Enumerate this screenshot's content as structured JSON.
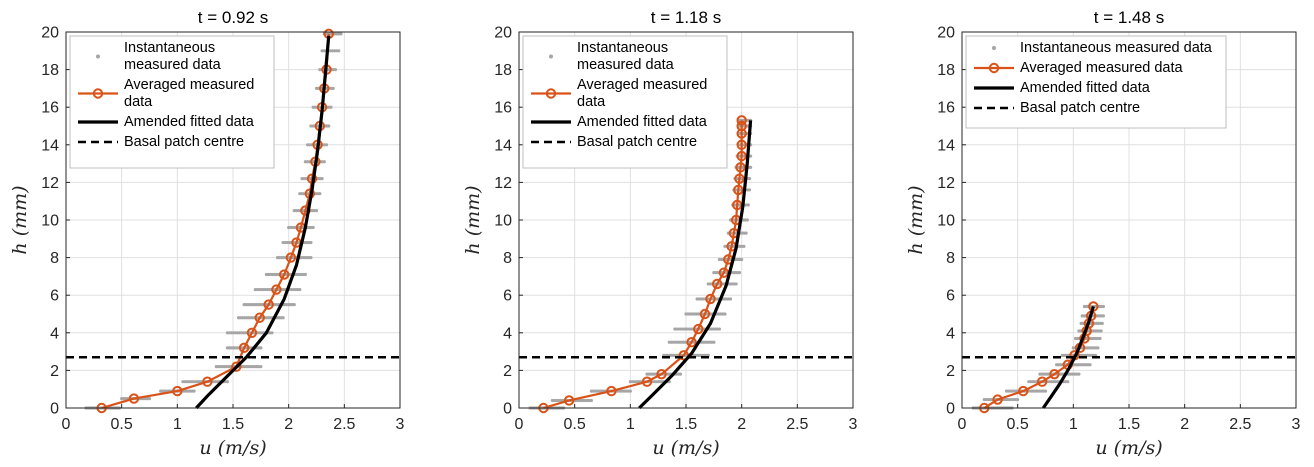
{
  "chart_data": [
    {
      "type": "line",
      "title": "t = 0.92 s",
      "xlabel": "u (m/s)",
      "ylabel": "h (mm)",
      "xlim": [
        0,
        3
      ],
      "ylim": [
        0,
        20
      ],
      "xticks": [
        0,
        0.5,
        1,
        1.5,
        2,
        2.5,
        3
      ],
      "yticks": [
        0,
        2,
        4,
        6,
        8,
        10,
        12,
        14,
        16,
        18,
        20
      ],
      "grid": true,
      "legend": {
        "placement": "top-left",
        "entries": [
          {
            "lines": [
              "Instantaneous",
              "measured data"
            ],
            "key": "instantaneous"
          },
          {
            "lines": [
              "Averaged measured",
              "data"
            ],
            "key": "averaged"
          },
          {
            "lines": [
              "Amended fitted data"
            ],
            "key": "fitted"
          },
          {
            "lines": [
              "Basal patch centre"
            ],
            "key": "basal"
          }
        ]
      },
      "series": [
        {
          "name": "Averaged measured data",
          "key": "averaged",
          "x": [
            0.32,
            0.61,
            1.0,
            1.27,
            1.53,
            1.6,
            1.67,
            1.74,
            1.82,
            1.89,
            1.96,
            2.02,
            2.07,
            2.11,
            2.15,
            2.19,
            2.21,
            2.24,
            2.26,
            2.28,
            2.3,
            2.32,
            2.34,
            2.36
          ],
          "y": [
            0.0,
            0.5,
            0.9,
            1.4,
            2.2,
            3.2,
            4.0,
            4.8,
            5.5,
            6.3,
            7.1,
            8.0,
            8.8,
            9.6,
            10.5,
            11.4,
            12.2,
            13.1,
            14.0,
            15.0,
            16.0,
            17.0,
            18.0,
            19.9
          ]
        },
        {
          "name": "Amended fitted data",
          "key": "fitted",
          "x": [
            1.17,
            1.28,
            1.45,
            1.62,
            1.8,
            1.96,
            2.07,
            2.15,
            2.21,
            2.26,
            2.3,
            2.33,
            2.36
          ],
          "y": [
            0.0,
            0.7,
            1.7,
            2.7,
            4.0,
            5.8,
            7.6,
            9.6,
            11.6,
            13.7,
            15.8,
            17.8,
            19.8
          ]
        },
        {
          "name": "Basal patch centre",
          "key": "basal",
          "y": 2.7
        }
      ],
      "scatter_rows": [
        {
          "h": 0.0,
          "u": [
            0.18,
            0.48
          ]
        },
        {
          "h": 0.5,
          "u": [
            0.5,
            0.75
          ]
        },
        {
          "h": 0.9,
          "u": [
            0.85,
            1.15
          ]
        },
        {
          "h": 1.4,
          "u": [
            1.05,
            1.45
          ]
        },
        {
          "h": 2.2,
          "u": [
            1.35,
            1.75
          ]
        },
        {
          "h": 3.2,
          "u": [
            1.45,
            1.75
          ]
        },
        {
          "h": 4.0,
          "u": [
            1.45,
            1.85
          ]
        },
        {
          "h": 4.8,
          "u": [
            1.55,
            1.95
          ]
        },
        {
          "h": 5.5,
          "u": [
            1.6,
            2.05
          ]
        },
        {
          "h": 6.3,
          "u": [
            1.7,
            2.1
          ]
        },
        {
          "h": 7.1,
          "u": [
            1.8,
            2.15
          ]
        },
        {
          "h": 8.0,
          "u": [
            1.9,
            2.2
          ]
        },
        {
          "h": 8.8,
          "u": [
            1.95,
            2.2
          ]
        },
        {
          "h": 9.6,
          "u": [
            2.0,
            2.22
          ]
        },
        {
          "h": 10.5,
          "u": [
            2.05,
            2.25
          ]
        },
        {
          "h": 11.4,
          "u": [
            2.1,
            2.28
          ]
        },
        {
          "h": 12.2,
          "u": [
            2.12,
            2.3
          ]
        },
        {
          "h": 13.1,
          "u": [
            2.15,
            2.32
          ]
        },
        {
          "h": 14.0,
          "u": [
            2.17,
            2.34
          ]
        },
        {
          "h": 15.0,
          "u": [
            2.2,
            2.36
          ]
        },
        {
          "h": 16.0,
          "u": [
            2.22,
            2.38
          ]
        },
        {
          "h": 17.0,
          "u": [
            2.25,
            2.4
          ]
        },
        {
          "h": 18.0,
          "u": [
            2.28,
            2.42
          ]
        },
        {
          "h": 19.0,
          "u": [
            2.3,
            2.45
          ]
        },
        {
          "h": 19.9,
          "u": [
            2.32,
            2.47
          ]
        }
      ]
    },
    {
      "type": "line",
      "title": "t = 1.18 s",
      "xlabel": "u (m/s)",
      "ylabel": "h (mm)",
      "xlim": [
        0,
        3
      ],
      "ylim": [
        0,
        20
      ],
      "xticks": [
        0,
        0.5,
        1,
        1.5,
        2,
        2.5,
        3
      ],
      "yticks": [
        0,
        2,
        4,
        6,
        8,
        10,
        12,
        14,
        16,
        18,
        20
      ],
      "grid": true,
      "legend": {
        "placement": "top-left",
        "entries": [
          {
            "lines": [
              "Instantaneous",
              "measured data"
            ],
            "key": "instantaneous"
          },
          {
            "lines": [
              "Averaged measured",
              "data"
            ],
            "key": "averaged"
          },
          {
            "lines": [
              "Amended fitted data"
            ],
            "key": "fitted"
          },
          {
            "lines": [
              "Basal patch centre"
            ],
            "key": "basal"
          }
        ]
      },
      "series": [
        {
          "name": "Averaged measured data",
          "key": "averaged",
          "x": [
            0.22,
            0.45,
            0.83,
            1.15,
            1.28,
            1.48,
            1.55,
            1.61,
            1.67,
            1.72,
            1.78,
            1.84,
            1.88,
            1.91,
            1.93,
            1.95,
            1.96,
            1.97,
            1.98,
            1.99,
            2.0,
            2.0,
            2.0,
            2.0,
            2.0
          ],
          "y": [
            0.0,
            0.4,
            0.9,
            1.4,
            1.8,
            2.8,
            3.5,
            4.2,
            5.0,
            5.8,
            6.6,
            7.2,
            7.9,
            8.6,
            9.3,
            10.0,
            10.8,
            11.6,
            12.2,
            12.8,
            13.4,
            14.0,
            14.6,
            15.0,
            15.3
          ]
        },
        {
          "name": "Amended fitted data",
          "key": "fitted",
          "x": [
            1.08,
            1.2,
            1.37,
            1.55,
            1.72,
            1.86,
            1.95,
            2.01,
            2.05,
            2.08
          ],
          "y": [
            0.0,
            0.7,
            1.7,
            2.9,
            4.5,
            6.5,
            8.5,
            10.7,
            13.0,
            15.3
          ]
        },
        {
          "name": "Basal patch centre",
          "key": "basal",
          "y": 2.7
        }
      ],
      "scatter_rows": [
        {
          "h": 0.0,
          "u": [
            0.1,
            0.4
          ]
        },
        {
          "h": 0.4,
          "u": [
            0.3,
            0.65
          ]
        },
        {
          "h": 0.9,
          "u": [
            0.65,
            1.0
          ]
        },
        {
          "h": 1.4,
          "u": [
            1.0,
            1.35
          ]
        },
        {
          "h": 1.8,
          "u": [
            1.15,
            1.45
          ]
        },
        {
          "h": 2.8,
          "u": [
            1.3,
            1.7
          ]
        },
        {
          "h": 3.5,
          "u": [
            1.35,
            1.75
          ]
        },
        {
          "h": 4.2,
          "u": [
            1.4,
            1.8
          ]
        },
        {
          "h": 5.0,
          "u": [
            1.5,
            1.85
          ]
        },
        {
          "h": 5.8,
          "u": [
            1.6,
            1.9
          ]
        },
        {
          "h": 6.6,
          "u": [
            1.7,
            1.95
          ]
        },
        {
          "h": 7.2,
          "u": [
            1.75,
            1.98
          ]
        },
        {
          "h": 7.9,
          "u": [
            1.8,
            2.0
          ]
        },
        {
          "h": 8.6,
          "u": [
            1.85,
            2.02
          ]
        },
        {
          "h": 9.3,
          "u": [
            1.88,
            2.04
          ]
        },
        {
          "h": 10.0,
          "u": [
            1.9,
            2.05
          ]
        },
        {
          "h": 10.8,
          "u": [
            1.92,
            2.06
          ]
        },
        {
          "h": 11.6,
          "u": [
            1.93,
            2.07
          ]
        },
        {
          "h": 12.2,
          "u": [
            1.94,
            2.07
          ]
        },
        {
          "h": 12.8,
          "u": [
            1.95,
            2.08
          ]
        },
        {
          "h": 13.4,
          "u": [
            1.96,
            2.08
          ]
        },
        {
          "h": 14.0,
          "u": [
            1.97,
            2.08
          ]
        },
        {
          "h": 14.6,
          "u": [
            1.97,
            2.08
          ]
        },
        {
          "h": 15.0,
          "u": [
            1.97,
            2.08
          ]
        },
        {
          "h": 15.3,
          "u": [
            1.97,
            2.08
          ]
        }
      ]
    },
    {
      "type": "line",
      "title": "t = 1.48 s",
      "xlabel": "u (m/s)",
      "ylabel": "h (mm)",
      "xlim": [
        0,
        3
      ],
      "ylim": [
        0,
        20
      ],
      "xticks": [
        0,
        0.5,
        1,
        1.5,
        2,
        2.5,
        3
      ],
      "yticks": [
        0,
        2,
        4,
        6,
        8,
        10,
        12,
        14,
        16,
        18,
        20
      ],
      "grid": true,
      "legend": {
        "placement": "top-left",
        "entries": [
          {
            "lines": [
              "Instantaneous measured data"
            ],
            "key": "instantaneous"
          },
          {
            "lines": [
              "Averaged measured data"
            ],
            "key": "averaged"
          },
          {
            "lines": [
              "Amended fitted data"
            ],
            "key": "fitted"
          },
          {
            "lines": [
              "Basal patch centre"
            ],
            "key": "basal"
          }
        ]
      },
      "series": [
        {
          "name": "Averaged measured data",
          "key": "averaged",
          "x": [
            0.2,
            0.32,
            0.55,
            0.72,
            0.83,
            0.95,
            1.01,
            1.06,
            1.1,
            1.12,
            1.14,
            1.16,
            1.18
          ],
          "y": [
            0.0,
            0.45,
            0.9,
            1.4,
            1.8,
            2.3,
            2.8,
            3.2,
            3.7,
            4.1,
            4.5,
            4.9,
            5.4
          ]
        },
        {
          "name": "Amended fitted data",
          "key": "fitted",
          "x": [
            0.73,
            0.8,
            0.88,
            0.96,
            1.03,
            1.09,
            1.14,
            1.18
          ],
          "y": [
            0.0,
            0.6,
            1.3,
            2.1,
            2.9,
            3.8,
            4.6,
            5.4
          ]
        },
        {
          "name": "Basal patch centre",
          "key": "basal",
          "y": 2.7
        }
      ],
      "scatter_rows": [
        {
          "h": 0.0,
          "u": [
            0.1,
            0.45
          ]
        },
        {
          "h": 0.45,
          "u": [
            0.2,
            0.5
          ]
        },
        {
          "h": 0.9,
          "u": [
            0.4,
            0.75
          ]
        },
        {
          "h": 1.4,
          "u": [
            0.6,
            0.95
          ]
        },
        {
          "h": 1.8,
          "u": [
            0.7,
            1.05
          ]
        },
        {
          "h": 2.3,
          "u": [
            0.85,
            1.15
          ]
        },
        {
          "h": 2.8,
          "u": [
            0.9,
            1.2
          ]
        },
        {
          "h": 3.2,
          "u": [
            1.0,
            1.22
          ]
        },
        {
          "h": 3.7,
          "u": [
            1.02,
            1.24
          ]
        },
        {
          "h": 4.1,
          "u": [
            1.05,
            1.25
          ]
        },
        {
          "h": 4.5,
          "u": [
            1.07,
            1.26
          ]
        },
        {
          "h": 4.9,
          "u": [
            1.08,
            1.27
          ]
        },
        {
          "h": 5.4,
          "u": [
            1.1,
            1.27
          ]
        }
      ]
    }
  ],
  "colors": {
    "instantaneous": "#a6a6a6",
    "averaged": "#d95319",
    "fitted": "#000000",
    "basal": "#000000",
    "grid": "#e0e0e0",
    "axis": "#262626"
  }
}
